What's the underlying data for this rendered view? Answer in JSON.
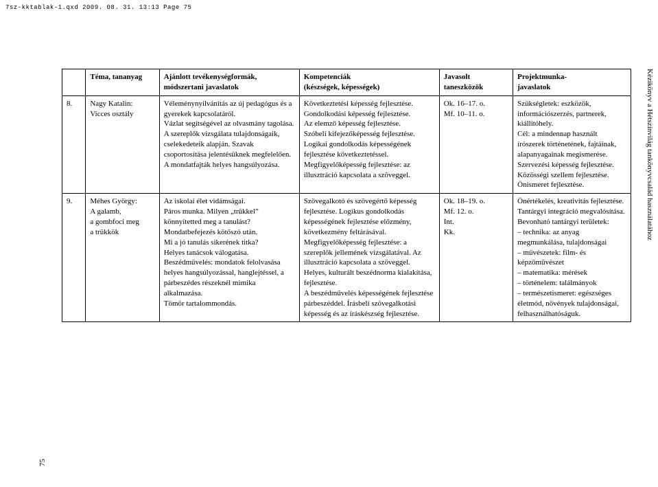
{
  "print_header": "7sz-kktablak-1.qxd  2009. 08. 31.  13:13  Page 75",
  "side_text": "Kézikönyv a Hétszínvilág tankönyvcsalád használatához",
  "page_number": "75",
  "table": {
    "headers": [
      "",
      "Téma, tananyag",
      "Ajánlott tevékenységformák,\nmódszertani javaslatok",
      "Kompetenciák\n(készségek, képességek)",
      "Javasolt\ntaneszközök",
      "Projektmunka-\njavaslatok"
    ],
    "rows": [
      {
        "num": "8.",
        "tema": "Nagy Katalin:\nVicces osztály",
        "ajanlott": "Véleménynyilvánítás az új pedagógus és a gyerekek kapcsolatáról.\nVázlat segítségével az olvasmány tagolása.\nA szereplők vizsgálata tulajdonságaik, cselekedeteik alapján. Szavak csoportosítása jelentésüknek megfelelően.\nA mondatfajták helyes hangsúlyozása.",
        "komp": "Következtetési képesség fejlesztése.\nGondolkodási képesség fejlesztése.\nAz elemző képesség fejlesztése.\nSzóbeli kifejezőképesség fejlesztése. Logikai gondolkodás képességének fejlesztése következtetéssel.\nMegfigyelőképesség fejlesztése: az illusztráció kapcsolata a szöveggel.",
        "javasolt": "Ok. 16–17. o.\nMf. 10–11. o.",
        "projekt": "Szükségletek: eszközök, információszerzés, partnerek, kiállítóhely.\nCél: a mindennap használt írószerek történetének, fajtáinak, alapanyagainak megismerése.\nSzervezési képesség fejlesztése. Közösségi szellem fejlesztése.\nÖnismeret fejlesztése."
      },
      {
        "num": "9.",
        "tema": "Méhes György:\nA galamb,\na gombfoci meg\na trükkök",
        "ajanlott": "Az iskolai élet vidámságai.\nPáros munka. Milyen „trükkel” könnyítetted meg a tanulást?\nMondatbefejezés kötőszó után.\nMi a jó tanulás sikerének titka?\nHelyes tanácsok válogatása.\nBeszédművelés: mondatok felolvasása helyes hangsúlyozással, hanglejtéssel, a párbeszédes részeknél mimika alkalmazása.\nTömör tartalommondás.",
        "komp": "Szövegalkotó és szövegértő képesség fejlesztése. Logikus gondolkodás képességének fejlesztése előzmény, következmény feltárásával.\nMegfigyelőképesség fejlesztése: a szereplők jellemének vizsgálatával. Az illusztráció kapcsolata a szöveggel. Helyes, kulturált beszédnorma kialakítása, fejlesztése.\nA beszédművelés képességének fejlesztése párbeszéddel. Írásbeli szövegalkotási képesség és az íráskészség fejlesztése.",
        "javasolt": "Ok. 18–19. o.\nMf. 12. o.\nInt.\nKk.",
        "projekt": "Önértékelés, kreativitás fejlesztése. Tantárgyi integráció megvalósítása.\nBevonható tantárgyi területek:\n– technika: az anyag megmunkálása, tulajdonságai\n– művészetek: film- és képzőművészet\n– matematika: mérések\n– történelem: találmányok\n– természetismeret: egészséges életmód, növények tulajdonságai, felhasználhatóságuk."
      }
    ]
  }
}
